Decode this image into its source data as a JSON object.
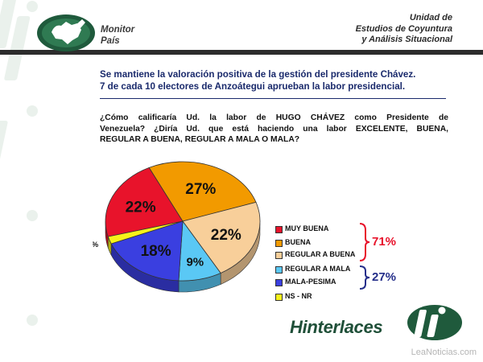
{
  "header": {
    "brand_line1": "Monitor",
    "brand_line2": "País",
    "unit_line1": "Unidad de",
    "unit_line2": "Estudios de Coyuntura",
    "unit_line3": "y Análisis Situacional"
  },
  "headline": {
    "line1": "Se mantiene la valoración positiva de la gestión del presidente Chávez.",
    "line2": "7 de cada 10 electores de Anzoátegui aprueban la labor presidencial."
  },
  "question": {
    "line1": "¿Cómo calificaría Ud. la labor de HUGO CHÁVEZ como Presidente de",
    "line2": "Venezuela? ¿Diría Ud. que está haciendo una labor EXCELENTE, BUENA,",
    "line3": "REGULAR A BUENA, REGULAR A MALA O MALA?"
  },
  "chart_data": {
    "type": "pie",
    "title": "",
    "slices": [
      {
        "label": "MUY BUENA",
        "value": 22,
        "display": "22%",
        "color": "#e8132b"
      },
      {
        "label": "BUENA",
        "value": 27,
        "display": "27%",
        "color": "#f29a00"
      },
      {
        "label": "REGULAR A BUENA",
        "value": 22,
        "display": "22%",
        "color": "#f8cf9a"
      },
      {
        "label": "REGULAR A MALA",
        "value": 9,
        "display": "9%",
        "color": "#5ac8f5"
      },
      {
        "label": "MALA-PESIMA",
        "value": 18,
        "display": "18%",
        "color": "#3a3fe0"
      },
      {
        "label": "NS - NR",
        "value": 2,
        "display": "2%",
        "color": "#f7f21a"
      }
    ],
    "groups": [
      {
        "display": "71%",
        "color": "#e8132b"
      },
      {
        "display": "27%",
        "color": "#242e8a"
      }
    ],
    "legend_position": "right"
  },
  "footer": {
    "company": "Hinterlaces",
    "watermark": "LeaNoticias.com"
  }
}
